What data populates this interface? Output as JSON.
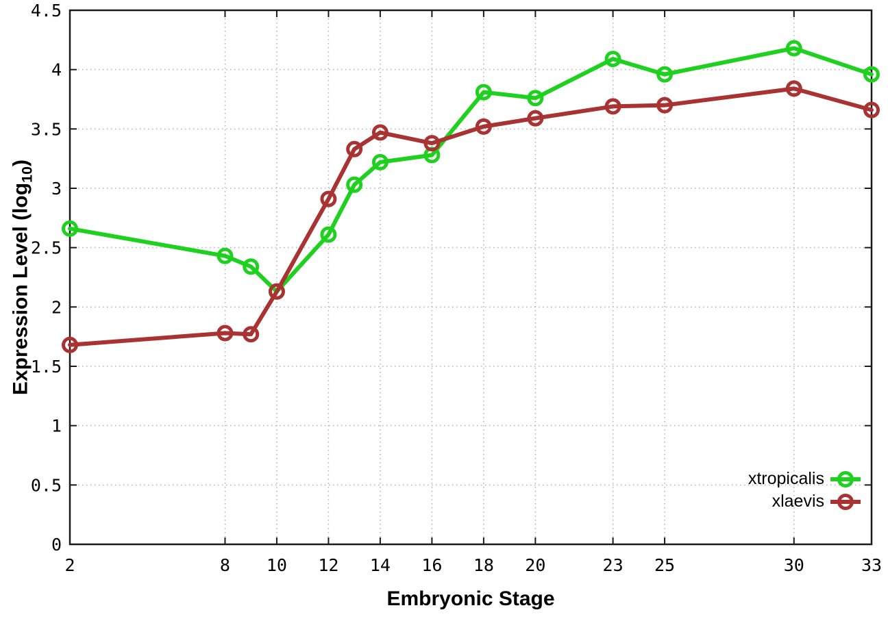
{
  "chart_data": {
    "type": "line",
    "title": "",
    "xlabel": "Embryonic Stage",
    "ylabel": "Expression Level (log10)",
    "ylabel_parts": {
      "prefix": "Expression Level (log",
      "sub": "10",
      "suffix": ")"
    },
    "x": [
      2,
      8,
      9,
      10,
      12,
      13,
      14,
      16,
      18,
      20,
      23,
      25,
      30,
      33
    ],
    "xticks": [
      2,
      8,
      10,
      12,
      14,
      16,
      18,
      20,
      23,
      25,
      30,
      33
    ],
    "yticks": [
      0,
      0.5,
      1,
      1.5,
      2,
      2.5,
      3,
      3.5,
      4,
      4.5
    ],
    "xlim": [
      2,
      33
    ],
    "ylim": [
      0,
      4.5
    ],
    "grid": true,
    "legend_position": "bottom-right",
    "series": [
      {
        "name": "xtropicalis",
        "color": "#1fd11f",
        "values": [
          2.66,
          2.43,
          2.34,
          2.13,
          2.61,
          3.03,
          3.22,
          3.28,
          3.81,
          3.76,
          4.09,
          3.96,
          4.18,
          3.96
        ]
      },
      {
        "name": "xlaevis",
        "color": "#a93232",
        "values": [
          1.68,
          1.78,
          1.77,
          2.13,
          2.91,
          3.33,
          3.47,
          3.38,
          3.52,
          3.59,
          3.69,
          3.7,
          3.84,
          3.66
        ]
      }
    ],
    "style": {
      "border_color": "#1a1a1a",
      "grid_color": "#b0b0b0",
      "tick_label_color": "#000000",
      "background": "#ffffff"
    }
  }
}
